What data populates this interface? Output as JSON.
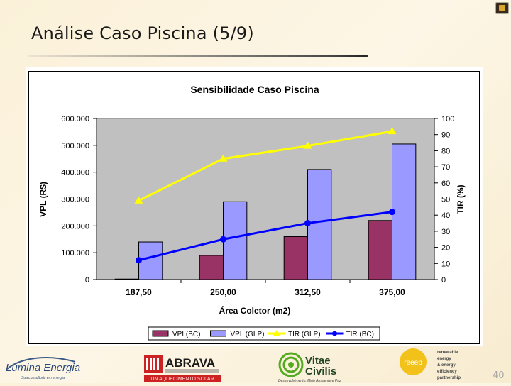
{
  "slide": {
    "title": "Análise Caso Piscina (5/9)",
    "page_number": "40"
  },
  "chart_data": {
    "type": "bar+line",
    "title": "Sensibilidade Caso Piscina",
    "xlabel": "Área Coletor (m2)",
    "ylabel_left": "VPL (R$)",
    "ylabel_right": "TIR (%)",
    "categories": [
      "187,50",
      "250,00",
      "312,50",
      "375,00"
    ],
    "y_left": {
      "min": 0,
      "max": 600000,
      "ticks": [
        "0",
        "100.000",
        "200.000",
        "300.000",
        "400.000",
        "500.000",
        "600.000"
      ]
    },
    "y_right": {
      "min": 0,
      "max": 100,
      "ticks": [
        "0",
        "10",
        "20",
        "30",
        "40",
        "50",
        "60",
        "70",
        "80",
        "90",
        "100"
      ]
    },
    "bar_series": [
      {
        "name": "VPL(BC)",
        "color": "#993366",
        "values": [
          2000,
          90000,
          160000,
          220000
        ]
      },
      {
        "name": "VPL (GLP)",
        "color": "#9999ff",
        "values": [
          140000,
          290000,
          410000,
          505000
        ]
      }
    ],
    "line_series": [
      {
        "name": "TIR (GLP)",
        "color": "#ffff00",
        "marker": "triangle",
        "values": [
          49,
          75,
          83,
          92
        ]
      },
      {
        "name": "TIR (BC)",
        "color": "#0000ff",
        "marker": "circle",
        "values": [
          12,
          25,
          35,
          42
        ]
      }
    ],
    "plot_background": "#c0c0c0",
    "legend_position": "bottom"
  },
  "footer": {
    "lumina": {
      "name": "Lumina Energia",
      "tagline": "Sua consultoria em energia"
    },
    "abrava": {
      "name": "ABRAVA",
      "band": "DN AQUECIMENTO SOLAR"
    },
    "vitae": {
      "name_line1": "Vitae",
      "name_line2": "Civilis",
      "tagline": "Desenvolvimento, Meio Ambiente e Paz"
    },
    "reeep": {
      "badge": "reeep",
      "lines": [
        "renewable",
        "energy",
        "& energy",
        "efficiency",
        "partnership"
      ]
    }
  }
}
